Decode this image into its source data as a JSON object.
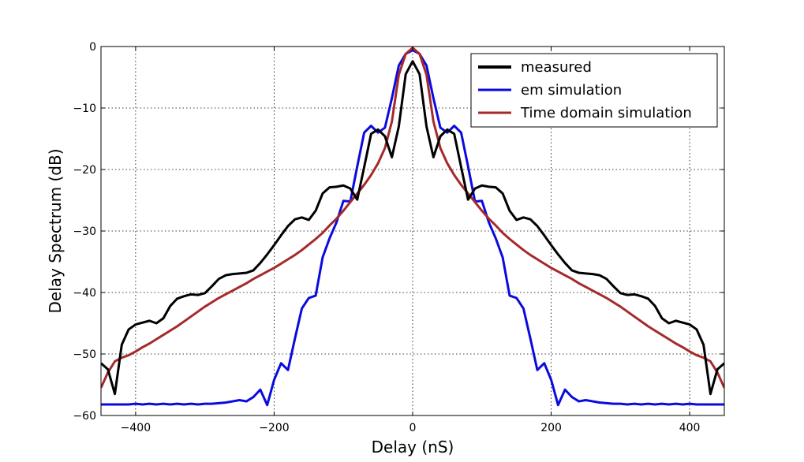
{
  "chart_data": {
    "type": "line",
    "title": "",
    "xlabel": "Delay (nS)",
    "ylabel": "Delay Spectrum (dB)",
    "xlim": [
      -450,
      450
    ],
    "ylim": [
      -60,
      0
    ],
    "xticks": [
      -400,
      -200,
      0,
      200,
      400
    ],
    "xtick_labels": [
      "−400",
      "−200",
      "0",
      "200",
      "400"
    ],
    "yticks": [
      -60,
      -50,
      -40,
      -30,
      -20,
      -10,
      0
    ],
    "ytick_labels": [
      "−60",
      "−50",
      "−40",
      "−30",
      "−20",
      "−10",
      "0"
    ],
    "grid": true,
    "legend_position": "top-right",
    "series": [
      {
        "name": "measured",
        "color": "#000000",
        "x": [
          -450,
          -440,
          -430,
          -420,
          -410,
          -400,
          -390,
          -380,
          -370,
          -360,
          -350,
          -340,
          -330,
          -320,
          -310,
          -300,
          -290,
          -280,
          -270,
          -260,
          -250,
          -240,
          -230,
          -220,
          -210,
          -200,
          -190,
          -180,
          -170,
          -160,
          -150,
          -140,
          -130,
          -120,
          -110,
          -100,
          -90,
          -80,
          -70,
          -60,
          -50,
          -40,
          -30,
          -20,
          -10,
          0,
          10,
          20,
          30,
          40,
          50,
          60,
          70,
          80,
          90,
          100,
          110,
          120,
          130,
          140,
          150,
          160,
          170,
          180,
          190,
          200,
          210,
          220,
          230,
          240,
          250,
          260,
          270,
          280,
          290,
          300,
          310,
          320,
          330,
          340,
          350,
          360,
          370,
          380,
          390,
          400,
          410,
          420,
          430,
          440,
          450
        ],
        "y": [
          -51.5,
          -52.5,
          -56.5,
          -48.5,
          -46,
          -45.2,
          -44.9,
          -44.6,
          -45,
          -44.2,
          -42.2,
          -41,
          -40.6,
          -40.3,
          -40.4,
          -40.1,
          -39,
          -37.8,
          -37.2,
          -37,
          -36.9,
          -36.8,
          -36.4,
          -35.2,
          -33.8,
          -32.3,
          -30.7,
          -29.2,
          -28.1,
          -27.8,
          -28.2,
          -26.7,
          -23.9,
          -22.9,
          -22.8,
          -22.6,
          -23.1,
          -24.9,
          -19.6,
          -14.2,
          -13.5,
          -14.6,
          -18,
          -13,
          -4.5,
          -2.4,
          -4.5,
          -13,
          -18,
          -14.6,
          -13.5,
          -14.2,
          -19.6,
          -24.9,
          -23.1,
          -22.6,
          -22.8,
          -22.9,
          -23.9,
          -26.7,
          -28.2,
          -27.8,
          -28.1,
          -29.2,
          -30.7,
          -32.3,
          -33.8,
          -35.2,
          -36.4,
          -36.8,
          -36.9,
          -37,
          -37.2,
          -37.8,
          -39,
          -40.1,
          -40.4,
          -40.3,
          -40.6,
          -41,
          -42.2,
          -44.2,
          -45,
          -44.6,
          -44.9,
          -45.2,
          -46,
          -48.5,
          -56.5,
          -52.5,
          -51.5
        ]
      },
      {
        "name": "em simulation",
        "color": "#0a0ae0",
        "x": [
          -450,
          -440,
          -430,
          -420,
          -410,
          -400,
          -390,
          -380,
          -370,
          -360,
          -350,
          -340,
          -330,
          -320,
          -310,
          -300,
          -290,
          -280,
          -270,
          -260,
          -250,
          -240,
          -230,
          -220,
          -210,
          -200,
          -190,
          -180,
          -170,
          -160,
          -150,
          -140,
          -130,
          -120,
          -110,
          -100,
          -90,
          -80,
          -70,
          -60,
          -50,
          -40,
          -30,
          -20,
          -10,
          0,
          10,
          20,
          30,
          40,
          50,
          60,
          70,
          80,
          90,
          100,
          110,
          120,
          130,
          140,
          150,
          160,
          170,
          180,
          190,
          200,
          210,
          220,
          230,
          240,
          250,
          260,
          270,
          280,
          290,
          300,
          310,
          320,
          330,
          340,
          350,
          360,
          370,
          380,
          390,
          400,
          410,
          420,
          430,
          440,
          450
        ],
        "y": [
          -58.2,
          -58.2,
          -58.2,
          -58.2,
          -58.2,
          -58.1,
          -58.2,
          -58.1,
          -58.2,
          -58.1,
          -58.2,
          -58.1,
          -58.2,
          -58.1,
          -58.2,
          -58.1,
          -58.1,
          -58.0,
          -57.9,
          -57.7,
          -57.5,
          -57.7,
          -57.0,
          -55.8,
          -58.3,
          -54.2,
          -51.5,
          -52.6,
          -47.5,
          -42.6,
          -40.9,
          -40.5,
          -34.3,
          -31.2,
          -28.6,
          -25.1,
          -25.2,
          -19.5,
          -14,
          -12.9,
          -14,
          -13.2,
          -8.4,
          -3.1,
          -1.2,
          -0.6,
          -1.2,
          -3.1,
          -8.4,
          -13.2,
          -14,
          -12.9,
          -14,
          -19.5,
          -25.2,
          -25.1,
          -28.6,
          -31.2,
          -34.3,
          -40.5,
          -40.9,
          -42.6,
          -47.5,
          -52.6,
          -51.5,
          -54.2,
          -58.3,
          -55.8,
          -57.0,
          -57.7,
          -57.5,
          -57.7,
          -57.9,
          -58.0,
          -58.1,
          -58.1,
          -58.2,
          -58.1,
          -58.2,
          -58.1,
          -58.2,
          -58.1,
          -58.2,
          -58.1,
          -58.2,
          -58.1,
          -58.2,
          -58.2,
          -58.2,
          -58.2,
          -58.2
        ]
      },
      {
        "name": "Time domain simulation",
        "color": "#a52a2a",
        "x": [
          -450,
          -440,
          -430,
          -420,
          -410,
          -400,
          -390,
          -380,
          -370,
          -360,
          -350,
          -340,
          -330,
          -320,
          -310,
          -300,
          -290,
          -280,
          -270,
          -260,
          -250,
          -240,
          -230,
          -220,
          -210,
          -200,
          -190,
          -180,
          -170,
          -160,
          -150,
          -140,
          -130,
          -120,
          -110,
          -100,
          -90,
          -80,
          -70,
          -60,
          -50,
          -40,
          -30,
          -20,
          -10,
          0,
          10,
          20,
          30,
          40,
          50,
          60,
          70,
          80,
          90,
          100,
          110,
          120,
          130,
          140,
          150,
          160,
          170,
          180,
          190,
          200,
          210,
          220,
          230,
          240,
          250,
          260,
          270,
          280,
          290,
          300,
          310,
          320,
          330,
          340,
          350,
          360,
          370,
          380,
          390,
          400,
          410,
          420,
          430,
          440,
          450
        ],
        "y": [
          -55.5,
          -53,
          -51.2,
          -50.6,
          -50.2,
          -49.6,
          -48.9,
          -48.3,
          -47.6,
          -46.9,
          -46.2,
          -45.5,
          -44.7,
          -43.9,
          -43.1,
          -42.3,
          -41.6,
          -40.9,
          -40.3,
          -39.7,
          -39.1,
          -38.5,
          -37.8,
          -37.2,
          -36.6,
          -36,
          -35.3,
          -34.6,
          -33.9,
          -33.1,
          -32.2,
          -31.3,
          -30.3,
          -29.1,
          -28.0,
          -26.7,
          -25.3,
          -23.9,
          -22.5,
          -20.9,
          -19.0,
          -16.5,
          -12.2,
          -4.6,
          -1.2,
          -0.2,
          -1.2,
          -4.6,
          -12.2,
          -16.5,
          -19.0,
          -20.9,
          -22.5,
          -23.9,
          -25.3,
          -26.7,
          -28.0,
          -29.1,
          -30.3,
          -31.3,
          -32.2,
          -33.1,
          -33.9,
          -34.6,
          -35.3,
          -36,
          -36.6,
          -37.2,
          -37.8,
          -38.5,
          -39.1,
          -39.7,
          -40.3,
          -40.9,
          -41.6,
          -42.3,
          -43.1,
          -43.9,
          -44.7,
          -45.5,
          -46.2,
          -46.9,
          -47.6,
          -48.3,
          -48.9,
          -49.6,
          -50.2,
          -50.6,
          -51.2,
          -53,
          -55.5
        ]
      }
    ]
  }
}
